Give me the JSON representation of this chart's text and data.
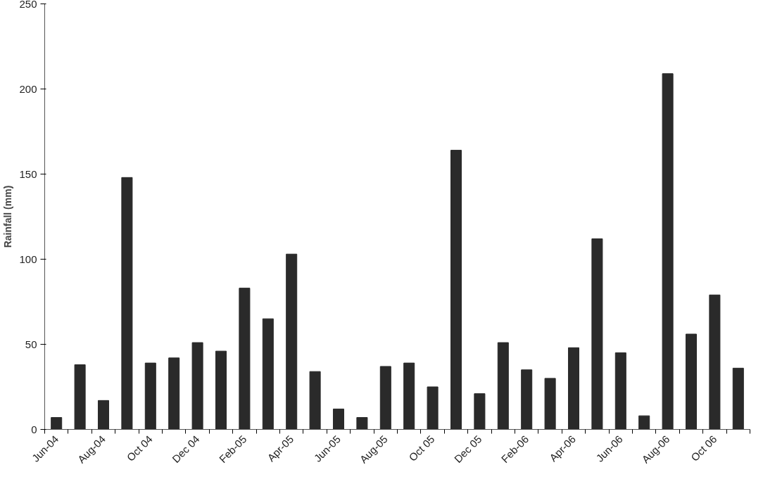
{
  "chart_data": {
    "type": "bar",
    "ylabel": "Rainfall (mm)",
    "categories": [
      "Jun-04",
      null,
      "Aug-04",
      null,
      "Oct 04",
      null,
      "Dec 04",
      null,
      "Feb-05",
      null,
      "Apr-05",
      null,
      "Jun-05",
      null,
      "Aug-05",
      null,
      "Oct 05",
      null,
      "Dec 05",
      null,
      "Feb-06",
      null,
      "Apr-06",
      null,
      "Jun-06",
      null,
      "Aug-06",
      null,
      "Oct 06",
      null
    ],
    "values": [
      7,
      38,
      17,
      148,
      39,
      42,
      51,
      46,
      83,
      65,
      103,
      34,
      12,
      7,
      37,
      39,
      25,
      164,
      21,
      51,
      35,
      30,
      48,
      112,
      45,
      8,
      209,
      56,
      79,
      36
    ],
    "color": "#2a2a2a",
    "ylim": [
      0,
      250
    ],
    "yticks": [
      0,
      50,
      100,
      150,
      200,
      250
    ],
    "grid": false
  }
}
